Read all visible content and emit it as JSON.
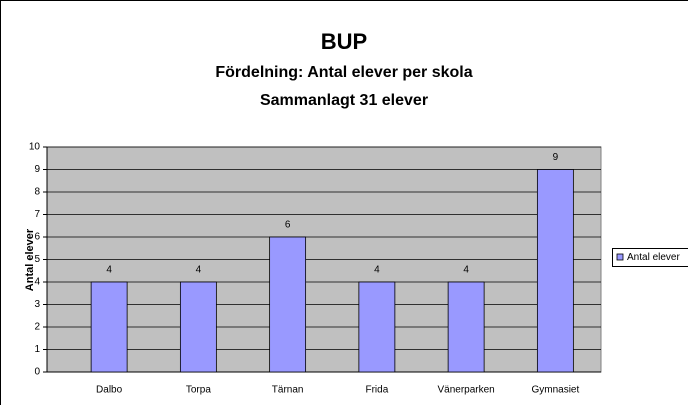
{
  "chart_data": {
    "type": "bar",
    "title": "BUP",
    "subtitle": [
      "Fördelning: Antal elever per skola",
      "Sammanlagt 31 elever"
    ],
    "ylabel": "Antal elever",
    "categories": [
      "Dalbo",
      "Torpa",
      "Tärnan",
      "Frida",
      "Vänerparken",
      "Gymnasiet"
    ],
    "series": [
      {
        "name": "Antal elever",
        "color": "#9999ff",
        "values": [
          4,
          4,
          6,
          4,
          4,
          9
        ]
      }
    ],
    "ylim": [
      0,
      10
    ],
    "yticks": [
      0,
      1,
      2,
      3,
      4,
      5,
      6,
      7,
      8,
      9,
      10
    ],
    "grid": true,
    "legend": "right"
  }
}
